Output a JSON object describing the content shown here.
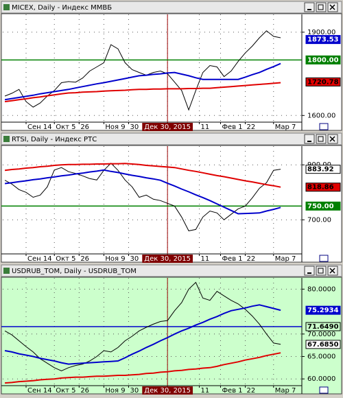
{
  "chart_data": [
    {
      "type": "line",
      "title": "MICEX, Daily - Индекс ММВБ",
      "background": "#ffffff",
      "xlim": [
        -0.3,
        42
      ],
      "xticks": [
        {
          "value": 3,
          "label": "Сен 14"
        },
        {
          "value": 7,
          "label": "Окт 5"
        },
        {
          "value": 10.5,
          "label": "26"
        },
        {
          "value": 14,
          "label": "Ноя 9"
        },
        {
          "value": 17.5,
          "label": "30"
        },
        {
          "value": 23,
          "label": "Дек 30, 2015"
        },
        {
          "value": 27.5,
          "label": "11"
        },
        {
          "value": 30.5,
          "label": "Фев 1"
        },
        {
          "value": 34,
          "label": "22"
        },
        {
          "value": 38,
          "label": "Мар 7"
        }
      ],
      "highlight_xtick": 5,
      "ylim": [
        1576,
        1964
      ],
      "yticks": [
        {
          "value": 1600,
          "label": "1600.00"
        },
        {
          "value": 1900,
          "label": "1900.00"
        }
      ],
      "levels": [
        {
          "value": 1800,
          "color": "#008000"
        }
      ],
      "price_labels": [
        {
          "value": 1873.53,
          "label": "1873.53",
          "color": "#0000cc"
        },
        {
          "value": 1800,
          "label": "1800.00",
          "color": "#008000"
        },
        {
          "value": 1720.78,
          "label": "1720.78",
          "color": "#e00000"
        }
      ],
      "series": [
        {
          "color": "#000000",
          "width": 1,
          "values": [
            1670,
            1680,
            1694,
            1650,
            1630,
            1645,
            1670,
            1690,
            1718,
            1722,
            1720,
            1735,
            1760,
            1775,
            1790,
            1855,
            1840,
            1790,
            1765,
            1755,
            1745,
            1755,
            1760,
            1750,
            1720,
            1690,
            1620,
            1690,
            1755,
            1780,
            1775,
            1740,
            1760,
            1795,
            1825,
            1850,
            1880,
            1905,
            1885,
            1880
          ]
        },
        {
          "color": "#0000cc",
          "width": 2,
          "values": [
            1657,
            1661,
            1665,
            1669,
            1673,
            1678,
            1682,
            1686,
            1690,
            1694,
            1699,
            1704,
            1709,
            1714,
            1718,
            1723,
            1728,
            1733,
            1738,
            1743,
            1745,
            1748,
            1750,
            1753,
            1755,
            1749,
            1743,
            1736,
            1730,
            1730,
            1730,
            1730,
            1730,
            1730,
            1738,
            1747,
            1755,
            1766,
            1776,
            1787
          ]
        },
        {
          "color": "#e00000",
          "width": 2,
          "values": [
            1650,
            1653,
            1657,
            1660,
            1664,
            1667,
            1671,
            1674,
            1678,
            1681,
            1682,
            1684,
            1685,
            1686,
            1688,
            1689,
            1690,
            1691,
            1693,
            1694,
            1694,
            1695,
            1695,
            1696,
            1696,
            1696,
            1697,
            1697,
            1698,
            1698,
            1700,
            1702,
            1704,
            1706,
            1708,
            1710,
            1712,
            1714,
            1716,
            1718
          ]
        }
      ]
    },
    {
      "type": "line",
      "title": "RTSI, Daily - Индекс РТС",
      "background": "#ffffff",
      "xlim": [
        -0.3,
        42
      ],
      "xticks": [
        {
          "value": 3,
          "label": "Сен 14"
        },
        {
          "value": 7,
          "label": "Окт 5"
        },
        {
          "value": 10.5,
          "label": "26"
        },
        {
          "value": 14,
          "label": "Ноя 9"
        },
        {
          "value": 17.5,
          "label": "30"
        },
        {
          "value": 23,
          "label": "Дек 30, 2015"
        },
        {
          "value": 27.5,
          "label": "11"
        },
        {
          "value": 30.5,
          "label": "Фев 1"
        },
        {
          "value": 34,
          "label": "22"
        },
        {
          "value": 38,
          "label": "Мар 7"
        }
      ],
      "highlight_xtick": 5,
      "ylim": [
        576,
        968
      ],
      "yticks": [
        {
          "value": 700,
          "label": "700.00"
        },
        {
          "value": 900,
          "label": "900.00"
        }
      ],
      "levels": [
        {
          "value": 750,
          "color": "#008000"
        }
      ],
      "price_labels": [
        {
          "value": 883.92,
          "label": "883.92",
          "color": "#ffffff"
        },
        {
          "value": 818.86,
          "label": "818.86",
          "color": "#e00000"
        },
        {
          "value": 750,
          "label": "750.00",
          "color": "#008000"
        }
      ],
      "series": [
        {
          "color": "#000000",
          "width": 1,
          "values": [
            844,
            830,
            810,
            800,
            782,
            790,
            820,
            881,
            890,
            875,
            869,
            860,
            850,
            845,
            880,
            906,
            880,
            845,
            820,
            782,
            790,
            775,
            770,
            760,
            750,
            710,
            660,
            665,
            710,
            732,
            725,
            700,
            720,
            740,
            750,
            780,
            815,
            835,
            880,
            884
          ]
        },
        {
          "color": "#0000cc",
          "width": 2,
          "values": [
            832,
            835,
            839,
            842,
            846,
            849,
            853,
            856,
            860,
            863,
            867,
            870,
            874,
            877,
            881,
            876,
            872,
            867,
            862,
            858,
            853,
            849,
            844,
            833,
            823,
            812,
            802,
            791,
            781,
            770,
            758,
            746,
            734,
            722,
            723,
            724,
            725,
            732,
            738,
            745
          ]
        },
        {
          "color": "#e00000",
          "width": 2,
          "values": [
            880,
            883,
            885,
            888,
            890,
            893,
            895,
            898,
            900,
            901,
            901,
            902,
            902,
            903,
            903,
            904,
            904,
            905,
            903,
            901,
            898,
            896,
            894,
            892,
            890,
            885,
            880,
            876,
            871,
            866,
            861,
            857,
            852,
            847,
            842,
            838,
            833,
            828,
            824,
            819
          ]
        }
      ]
    },
    {
      "type": "line",
      "title": "USDRUB_TOM, Daily - USDRUB_TOM",
      "background": "#ccffcc",
      "xlim": [
        -0.3,
        42
      ],
      "xticks": [
        {
          "value": 3,
          "label": "Сен 14"
        },
        {
          "value": 7,
          "label": "Окт 5"
        },
        {
          "value": 10.5,
          "label": "26"
        },
        {
          "value": 14,
          "label": "Ноя 9"
        },
        {
          "value": 17.5,
          "label": "30"
        },
        {
          "value": 23,
          "label": "Дек 30, 2015"
        },
        {
          "value": 27.5,
          "label": "11"
        },
        {
          "value": 30.5,
          "label": "Фев 1"
        },
        {
          "value": 34,
          "label": "22"
        },
        {
          "value": 38,
          "label": "Мар 7"
        }
      ],
      "highlight_xtick": 5,
      "ylim": [
        58.5,
        82.5
      ],
      "yticks": [
        {
          "value": 60,
          "label": "60.0000"
        },
        {
          "value": 65,
          "label": "65.0000"
        },
        {
          "value": 70,
          "label": "70.0000"
        },
        {
          "value": 80,
          "label": "80.0000"
        }
      ],
      "levels": [
        {
          "value": 71.649,
          "color": "#0000cc"
        }
      ],
      "price_labels": [
        {
          "value": 75.2934,
          "label": "75.2934",
          "color": "#0000cc"
        },
        {
          "value": 71.649,
          "label": "71.6490",
          "color": "#ccffcc"
        },
        {
          "value": 67.685,
          "label": "67.6850",
          "color": "#ffffff"
        }
      ],
      "series": [
        {
          "color": "#000000",
          "width": 1,
          "values": [
            70.7,
            69.8,
            68.5,
            67.2,
            66,
            64.5,
            63.5,
            62.5,
            61.8,
            62.5,
            63,
            63.3,
            64,
            65,
            66.3,
            66,
            67,
            68.5,
            69.5,
            70.7,
            71.5,
            72.2,
            72.8,
            73,
            75.2,
            77,
            80,
            81.5,
            78,
            77.5,
            79.5,
            78.5,
            77.5,
            76.7,
            75.5,
            74,
            72.2,
            70,
            68,
            67.7
          ]
        },
        {
          "color": "#0000cc",
          "width": 2,
          "values": [
            66.3,
            66,
            65.6,
            65.3,
            65,
            64.6,
            64.3,
            64,
            63.6,
            63.3,
            63.4,
            63.5,
            63.6,
            63.7,
            63.8,
            63.9,
            64,
            64.7,
            65.5,
            66.2,
            67,
            67.7,
            68.5,
            69.2,
            70,
            70.7,
            71.3,
            72,
            72.6,
            73.3,
            73.9,
            74.6,
            75.2,
            75.5,
            75.8,
            76.2,
            76.5,
            76.1,
            75.7,
            75.3
          ]
        },
        {
          "color": "#e00000",
          "width": 2,
          "values": [
            59.1,
            59.2,
            59.4,
            59.5,
            59.6,
            59.8,
            59.9,
            60,
            60.2,
            60.3,
            60.4,
            60.4,
            60.5,
            60.6,
            60.6,
            60.7,
            60.8,
            60.8,
            60.9,
            61,
            61.2,
            61.3,
            61.5,
            61.6,
            61.8,
            61.9,
            62.1,
            62.2,
            62.4,
            62.5,
            62.8,
            63.2,
            63.5,
            63.8,
            64.2,
            64.5,
            64.8,
            65.2,
            65.5,
            65.8
          ]
        }
      ]
    }
  ]
}
